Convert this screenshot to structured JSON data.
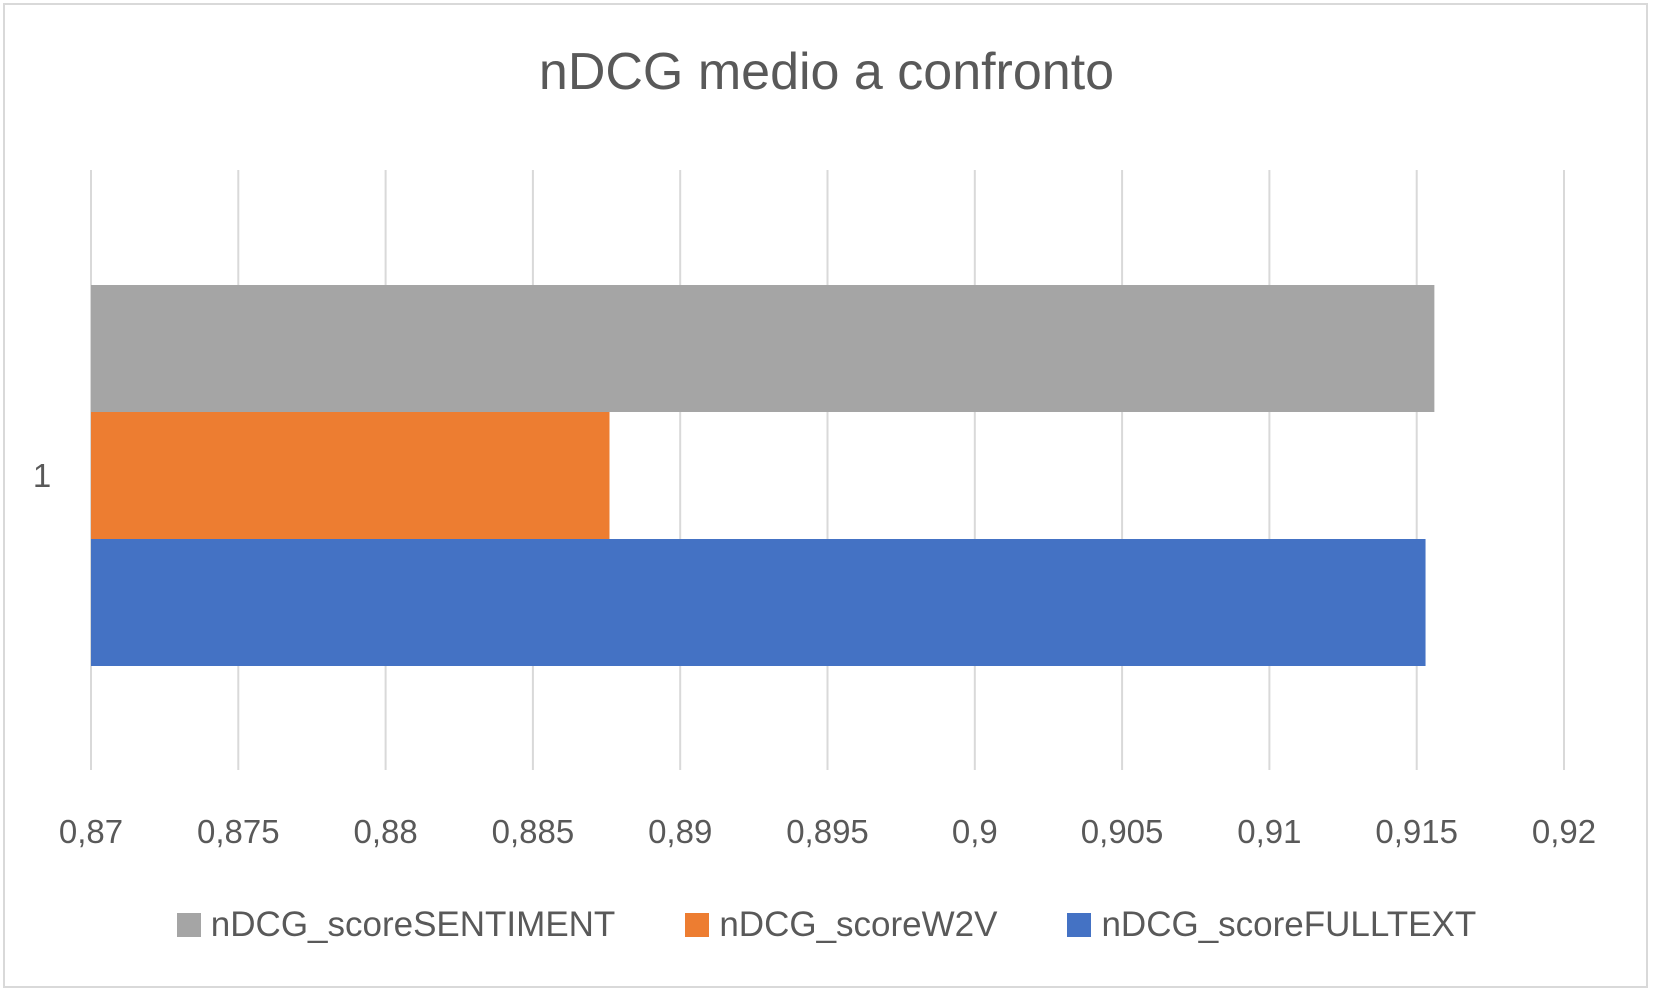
{
  "chart_data": {
    "type": "bar",
    "orientation": "horizontal",
    "title": "nDCG medio a confronto",
    "categories": [
      "1"
    ],
    "series": [
      {
        "name": "nDCG_scoreSENTIMENT",
        "values": [
          0.9156
        ],
        "color": "#a5a5a5"
      },
      {
        "name": "nDCG_scoreW2V",
        "values": [
          0.8876
        ],
        "color": "#ed7d31"
      },
      {
        "name": "nDCG_scoreFULLTEXT",
        "values": [
          0.9153
        ],
        "color": "#4472c4"
      }
    ],
    "xlim": [
      0.87,
      0.92
    ],
    "x_ticks": [
      "0,87",
      "0,875",
      "0,88",
      "0,885",
      "0,89",
      "0,895",
      "0,9",
      "0,905",
      "0,91",
      "0,915",
      "0,92"
    ],
    "grid": true,
    "legend_position": "bottom"
  }
}
